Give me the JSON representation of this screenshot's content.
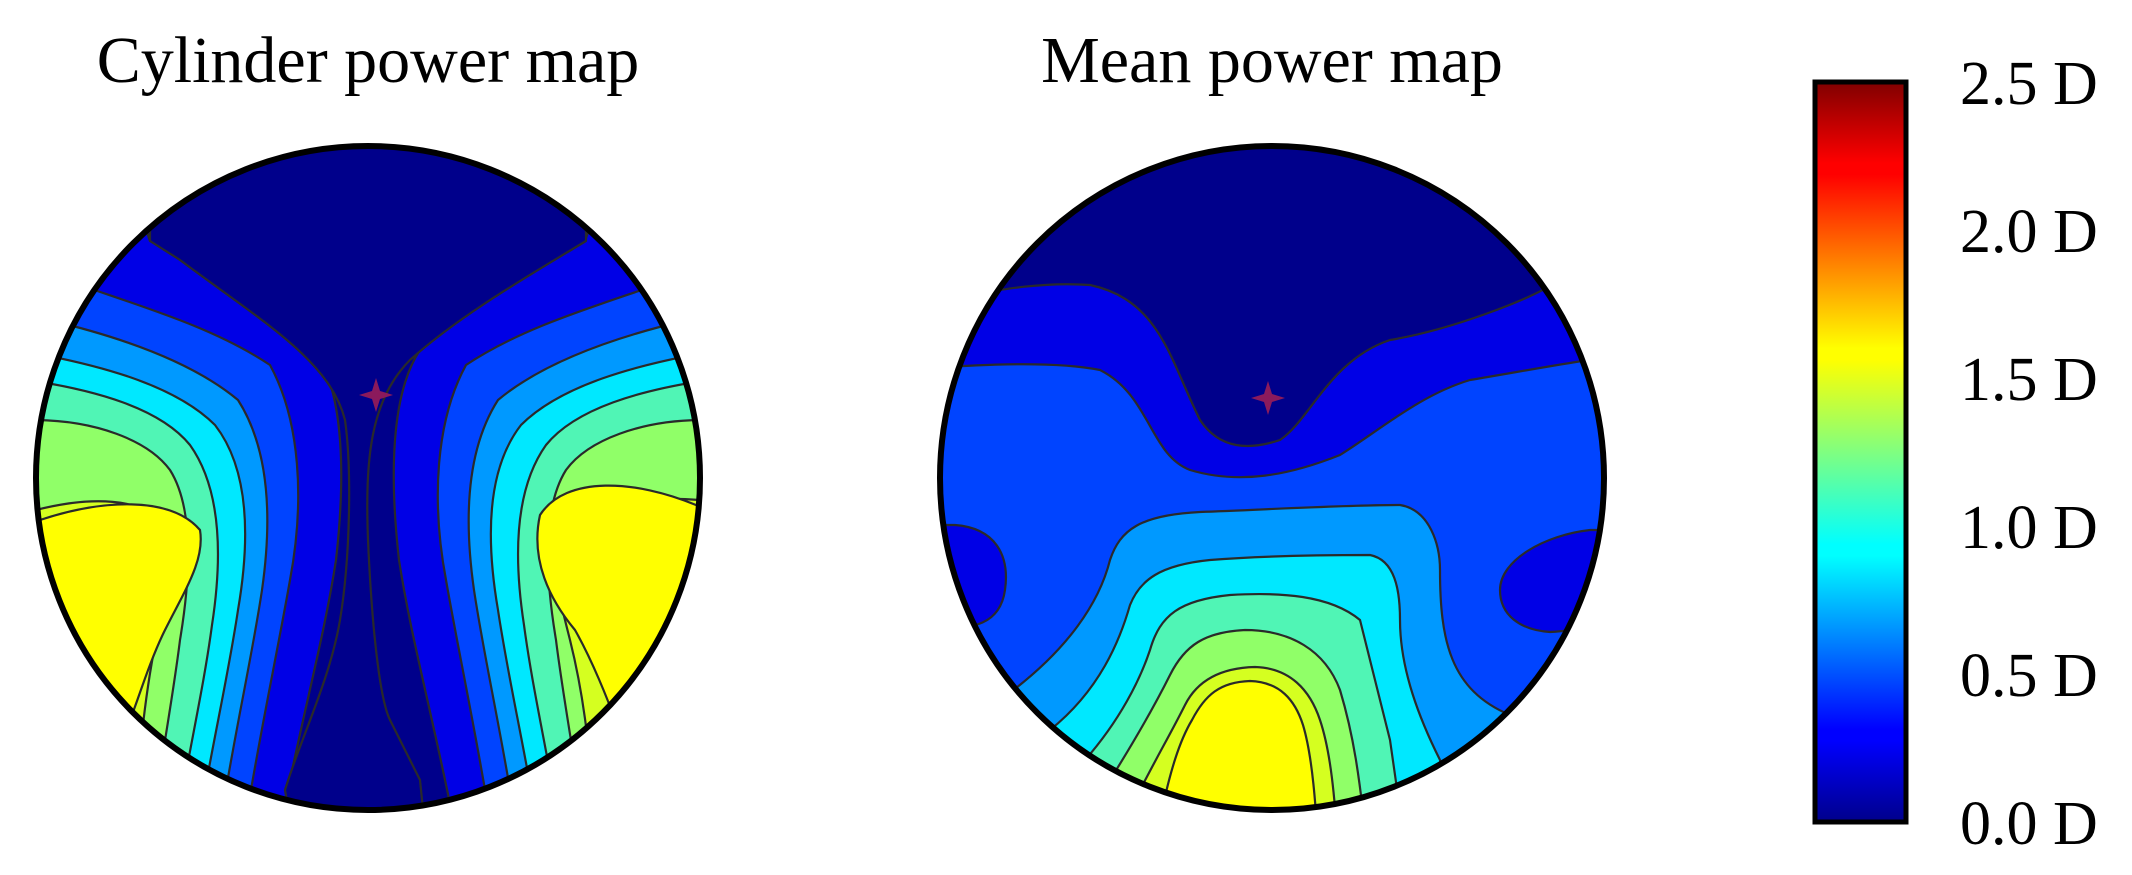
{
  "chart_data": [
    {
      "type": "heatmap",
      "title": "Cylinder power map",
      "unit": "D",
      "levels": [
        0.0,
        0.25,
        0.5,
        0.75,
        1.0,
        1.25,
        1.5,
        1.75,
        2.0,
        2.25,
        2.5
      ],
      "value_range": [
        0.0,
        2.5
      ],
      "center_marker": "star",
      "regions": [
        {
          "location": "top center",
          "value": 0.0
        },
        {
          "location": "central vertical channel",
          "value": 0.0
        },
        {
          "location": "bottom center",
          "value": 0.0
        },
        {
          "location": "upper left and right",
          "value": 0.25
        },
        {
          "location": "left and right lobes, outer rings",
          "value": 0.5
        },
        {
          "location": "left and right lobes",
          "value": 0.75
        },
        {
          "location": "left and right lobes",
          "value": 1.0
        },
        {
          "location": "left and right lobes",
          "value": 1.25
        },
        {
          "location": "left and right lobes",
          "value": 1.5
        },
        {
          "location": "left and right lower periphery",
          "value": 1.75
        }
      ]
    },
    {
      "type": "heatmap",
      "title": "Mean power map",
      "unit": "D",
      "levels": [
        0.0,
        0.25,
        0.5,
        0.75,
        1.0,
        1.25,
        1.5,
        1.75,
        2.0,
        2.25,
        2.5
      ],
      "value_range": [
        0.0,
        2.5
      ],
      "center_marker": "star",
      "regions": [
        {
          "location": "top",
          "value": 0.0
        },
        {
          "location": "upper band",
          "value": 0.25
        },
        {
          "location": "left and right edge pockets",
          "value": 0.25
        },
        {
          "location": "middle band",
          "value": 0.5
        },
        {
          "location": "lower center",
          "value": 0.75
        },
        {
          "location": "lower center",
          "value": 1.0
        },
        {
          "location": "lower center",
          "value": 1.25
        },
        {
          "location": "lower center",
          "value": 1.5
        },
        {
          "location": "lower center",
          "value": 1.75
        },
        {
          "location": "bottom center",
          "value": 2.0
        }
      ]
    }
  ],
  "colorbar": {
    "colormap": "jet",
    "min": 0.0,
    "max": 2.5,
    "ticks": [
      "2.5 D",
      "2.0 D",
      "1.5 D",
      "1.0 D",
      "0.5 D",
      "0.0 D"
    ]
  },
  "palette": {
    "0.0": "#00008b",
    "0.25": "#0000e6",
    "0.5": "#0044ff",
    "0.75": "#0099ff",
    "1.0": "#00e8ff",
    "1.25": "#50f5b5",
    "1.5": "#90ff68",
    "1.75": "#d5ff20",
    "2.0": "#ffff00",
    "2.25": "#ffa000"
  }
}
